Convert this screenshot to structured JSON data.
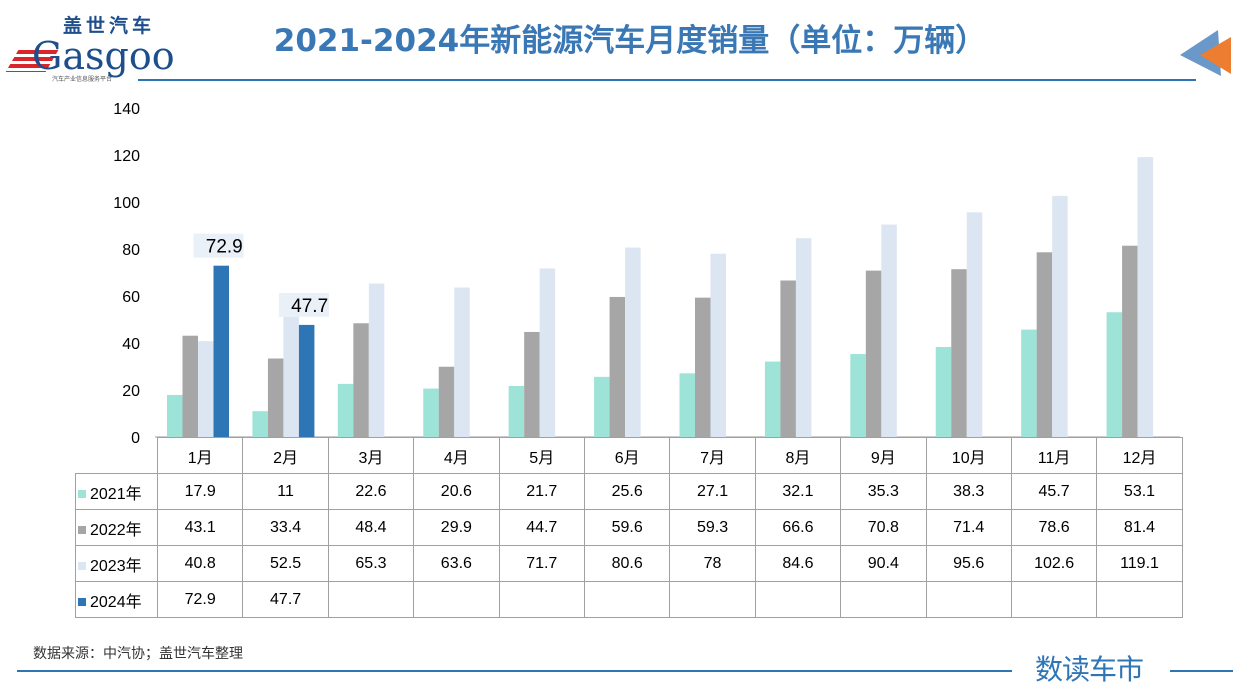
{
  "header": {
    "title": "2021-2024年新能源汽车月度销量（单位：万辆）"
  },
  "logo": {
    "cn": "盖世汽车",
    "en": "Gasgoo",
    "sub": "汽车产业信息服务平台"
  },
  "footer": {
    "source": "数据来源：中汽协；盖世汽车整理",
    "brand": "数读车市"
  },
  "colors": {
    "accent": "#2e75b6",
    "arrow_blue": "#6a98c8",
    "arrow_orange": "#ed7d31"
  },
  "chart_data": {
    "type": "bar",
    "title": "2021-2024年新能源汽车月度销量（单位：万辆）",
    "categories": [
      "1月",
      "2月",
      "3月",
      "4月",
      "5月",
      "6月",
      "7月",
      "8月",
      "9月",
      "10月",
      "11月",
      "12月"
    ],
    "ylim": [
      0,
      140
    ],
    "yticks": [
      0,
      20,
      40,
      60,
      80,
      100,
      120,
      140
    ],
    "grid": false,
    "legend": "table",
    "series": [
      {
        "name": "2021年",
        "color": "#9de3d8",
        "values": [
          17.9,
          11,
          22.6,
          20.6,
          21.7,
          25.6,
          27.1,
          32.1,
          35.3,
          38.3,
          45.7,
          53.1
        ]
      },
      {
        "name": "2022年",
        "color": "#a6a6a6",
        "values": [
          43.1,
          33.4,
          48.4,
          29.9,
          44.7,
          59.6,
          59.3,
          66.6,
          70.8,
          71.4,
          78.6,
          81.4
        ]
      },
      {
        "name": "2023年",
        "color": "#dce6f2",
        "values": [
          40.8,
          52.5,
          65.3,
          63.6,
          71.7,
          80.6,
          78,
          84.6,
          90.4,
          95.6,
          102.6,
          119.1
        ]
      },
      {
        "name": "2024年",
        "color": "#2e75b6",
        "values": [
          72.9,
          47.7,
          null,
          null,
          null,
          null,
          null,
          null,
          null,
          null,
          null,
          null
        ],
        "data_labels": true
      }
    ]
  }
}
